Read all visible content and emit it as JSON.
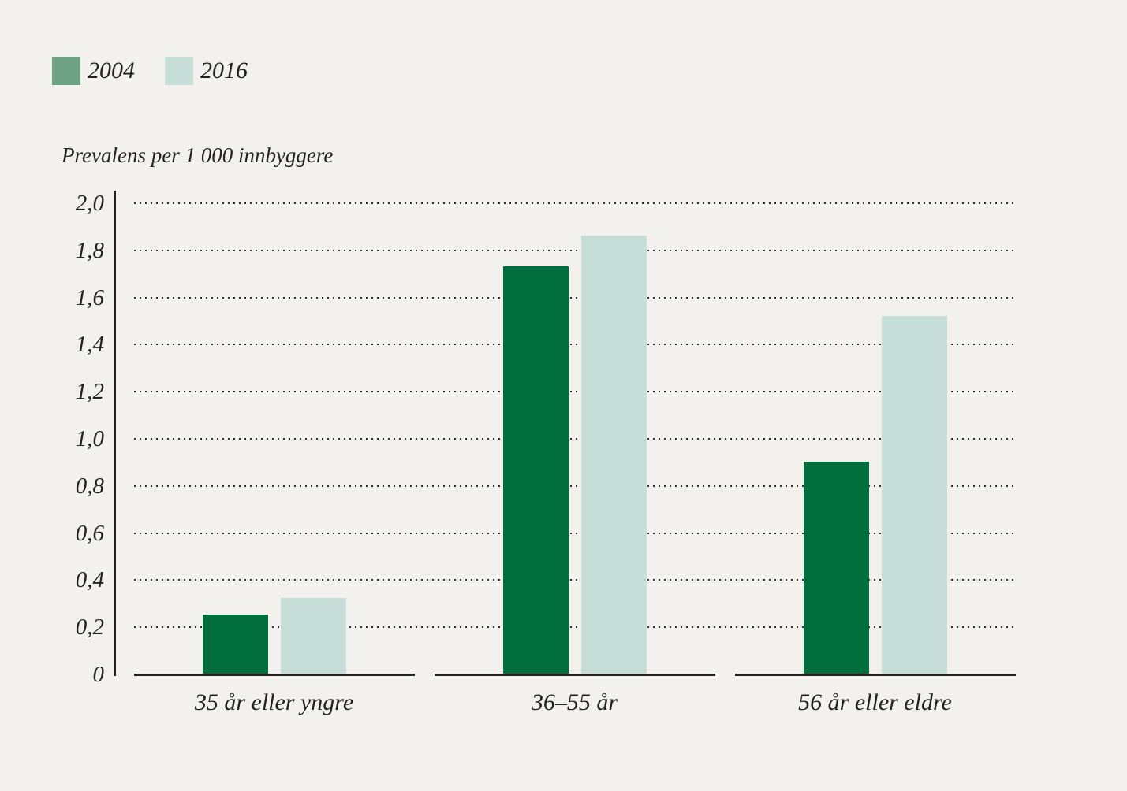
{
  "chart_data": {
    "type": "bar",
    "title": "Prevalens per 1 000 innbyggere",
    "ylabel": "Prevalens per 1 000 innbyggere",
    "xlabel": "",
    "categories": [
      "35 år eller yngre",
      "36–55 år",
      "56 år eller eldre"
    ],
    "series": [
      {
        "name": "2004",
        "color": "#006e3c",
        "legend_color": "#6ea284",
        "values": [
          0.25,
          1.73,
          0.9
        ]
      },
      {
        "name": "2016",
        "color": "#c7ded8",
        "legend_color": "#c7ded8",
        "values": [
          0.32,
          1.86,
          1.52
        ]
      }
    ],
    "ylim": [
      0,
      2.0
    ],
    "y_ticks": {
      "values": [
        0,
        0.2,
        0.4,
        0.6,
        0.8,
        1.0,
        1.2,
        1.4,
        1.6,
        1.8,
        2.0
      ],
      "labels": [
        "0",
        "0,2",
        "0,4",
        "0,6",
        "0,8",
        "1,0",
        "1,2",
        "1,4",
        "1,6",
        "1,8",
        "2,0"
      ]
    },
    "decimal_separator": ",",
    "grid": "dotted horizontal gridlines",
    "legend_position": "top-left",
    "background_color": "#f2f1ee",
    "text_color": "#23221f"
  }
}
